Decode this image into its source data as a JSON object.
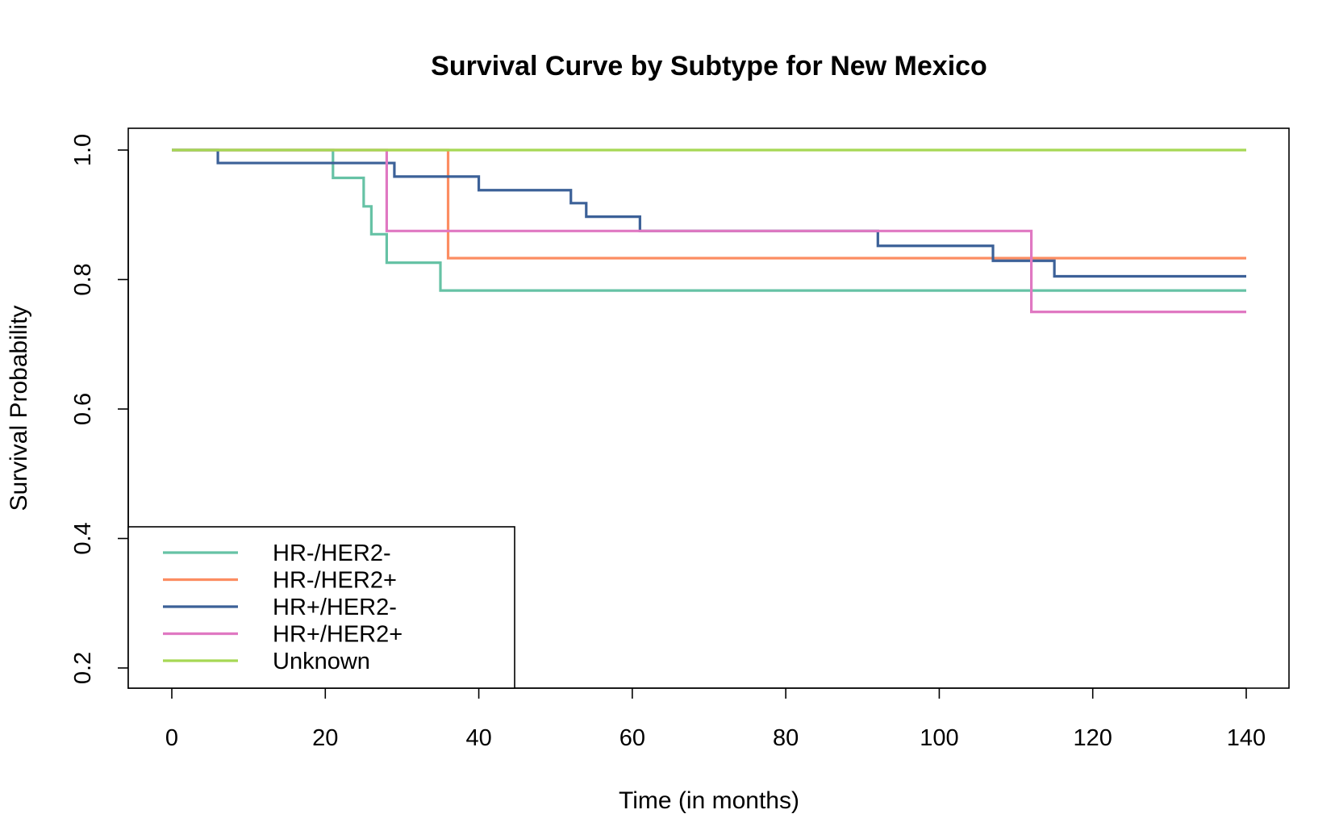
{
  "chart_data": {
    "type": "line",
    "title": "Survival Curve by Subtype for New Mexico",
    "xlabel": "Time (in months)",
    "ylabel": "Survival Probability",
    "xlim": [
      0,
      140
    ],
    "ylim": [
      0.2,
      1.0
    ],
    "x_ticks": [
      "0",
      "20",
      "40",
      "60",
      "80",
      "100",
      "120",
      "140"
    ],
    "y_ticks": [
      "0.2",
      "0.4",
      "0.6",
      "0.8",
      "1.0"
    ],
    "grid": false,
    "legend_position": "bottom-left",
    "series": [
      {
        "name": "HR-/HER2-",
        "color": "#66c2a5",
        "x": [
          0,
          21,
          25,
          26,
          28,
          35,
          140
        ],
        "y": [
          1.0,
          0.957,
          0.913,
          0.87,
          0.826,
          0.783,
          0.783
        ]
      },
      {
        "name": "HR-/HER2+",
        "color": "#fc8d62",
        "x": [
          0,
          36,
          140
        ],
        "y": [
          1.0,
          0.833,
          0.833
        ]
      },
      {
        "name": "HR+/HER2-",
        "color": "#3c6198",
        "x": [
          0,
          6,
          29,
          40,
          52,
          54,
          61,
          92,
          107,
          115,
          140
        ],
        "y": [
          1.0,
          0.98,
          0.959,
          0.938,
          0.918,
          0.897,
          0.875,
          0.852,
          0.829,
          0.805,
          0.805
        ]
      },
      {
        "name": "HR+/HER2+",
        "color": "#e078c2",
        "x": [
          0,
          28,
          112,
          140
        ],
        "y": [
          1.0,
          0.875,
          0.75,
          0.75
        ]
      },
      {
        "name": "Unknown",
        "color": "#a6d854",
        "x": [
          0,
          140
        ],
        "y": [
          1.0,
          1.0
        ]
      }
    ]
  }
}
